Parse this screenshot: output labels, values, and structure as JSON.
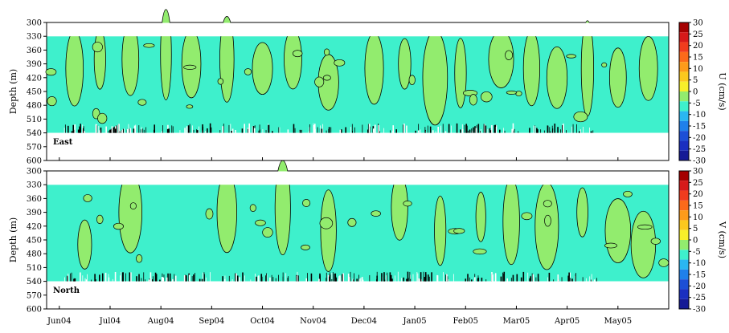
{
  "chart_data": [
    {
      "type": "heatmap",
      "panel_label": "East",
      "ylabel": "Depth (m)",
      "colorbar_label": "U (cm/s)",
      "ylim": [
        600,
        300
      ],
      "yticks": [
        300,
        330,
        360,
        390,
        420,
        450,
        480,
        510,
        540,
        570,
        600
      ],
      "data_depth_range": [
        330,
        540
      ],
      "dominant_level": [
        -5,
        0
      ],
      "positive_patches_level": [
        0,
        5
      ],
      "positive_patches": [
        {
          "date": 0.3,
          "depth": 400
        },
        {
          "date": 0.8,
          "depth": 380
        },
        {
          "date": 1.4,
          "depth": 380
        },
        {
          "date": 2.1,
          "depth": 370
        },
        {
          "date": 2.6,
          "depth": 390
        },
        {
          "date": 3.3,
          "depth": 380
        },
        {
          "date": 4.0,
          "depth": 400
        },
        {
          "date": 4.6,
          "depth": 380
        },
        {
          "date": 5.3,
          "depth": 430
        },
        {
          "date": 6.2,
          "depth": 400
        },
        {
          "date": 6.8,
          "depth": 390
        },
        {
          "date": 7.4,
          "depth": 420
        },
        {
          "date": 7.9,
          "depth": 410
        },
        {
          "date": 8.7,
          "depth": 380
        },
        {
          "date": 9.3,
          "depth": 400
        },
        {
          "date": 9.8,
          "depth": 420
        },
        {
          "date": 10.4,
          "depth": 400
        },
        {
          "date": 11.0,
          "depth": 420
        },
        {
          "date": 11.6,
          "depth": 400
        }
      ]
    },
    {
      "type": "heatmap",
      "panel_label": "North",
      "ylabel": "Depth (m)",
      "colorbar_label": "V (cm/s)",
      "ylim": [
        600,
        300
      ],
      "yticks": [
        300,
        330,
        360,
        390,
        420,
        450,
        480,
        510,
        540,
        570,
        600
      ],
      "data_depth_range": [
        330,
        540
      ],
      "dominant_level": [
        -5,
        0
      ],
      "positive_patches_level": [
        0,
        5
      ],
      "positive_patches": [
        {
          "date": 0.5,
          "depth": 460
        },
        {
          "date": 1.4,
          "depth": 390
        },
        {
          "date": 3.3,
          "depth": 390
        },
        {
          "date": 4.4,
          "depth": 380
        },
        {
          "date": 5.3,
          "depth": 430
        },
        {
          "date": 6.7,
          "depth": 380
        },
        {
          "date": 7.5,
          "depth": 430
        },
        {
          "date": 8.3,
          "depth": 400
        },
        {
          "date": 8.9,
          "depth": 410
        },
        {
          "date": 9.6,
          "depth": 420
        },
        {
          "date": 10.3,
          "depth": 390
        },
        {
          "date": 11.0,
          "depth": 430
        },
        {
          "date": 11.5,
          "depth": 460
        }
      ]
    }
  ],
  "x_axis": {
    "tick_labels": [
      "Jun04",
      "Jul04",
      "Aug04",
      "Sep04",
      "Oct04",
      "Nov04",
      "Dec04",
      "Jan05",
      "Feb05",
      "Mar05",
      "Apr05",
      "May05"
    ],
    "range": [
      -0.25,
      12.0
    ]
  },
  "colorbar": {
    "tick_labels": [
      "30",
      "25",
      "20",
      "15",
      "10",
      "5",
      "0",
      "-5",
      "-10",
      "-15",
      "-20",
      "-25",
      "-30"
    ],
    "levels": [
      30,
      25,
      20,
      15,
      10,
      5,
      0,
      -5,
      -10,
      -15,
      -20,
      -25,
      -30
    ],
    "colors": [
      "#a50000",
      "#d71a1a",
      "#f03c1e",
      "#fb6a1a",
      "#fd9b1a",
      "#fbc81e",
      "#f7ef2a",
      "#92ec6e",
      "#3ef0cc",
      "#2ab7f2",
      "#1f80ea",
      "#1c4fd6",
      "#1a2fc0",
      "#151a96"
    ]
  },
  "colors": {
    "negative_fill": "#3ef0cc",
    "positive_fill": "#92ec6e",
    "contour": "#000000",
    "background": "#ffffff"
  }
}
